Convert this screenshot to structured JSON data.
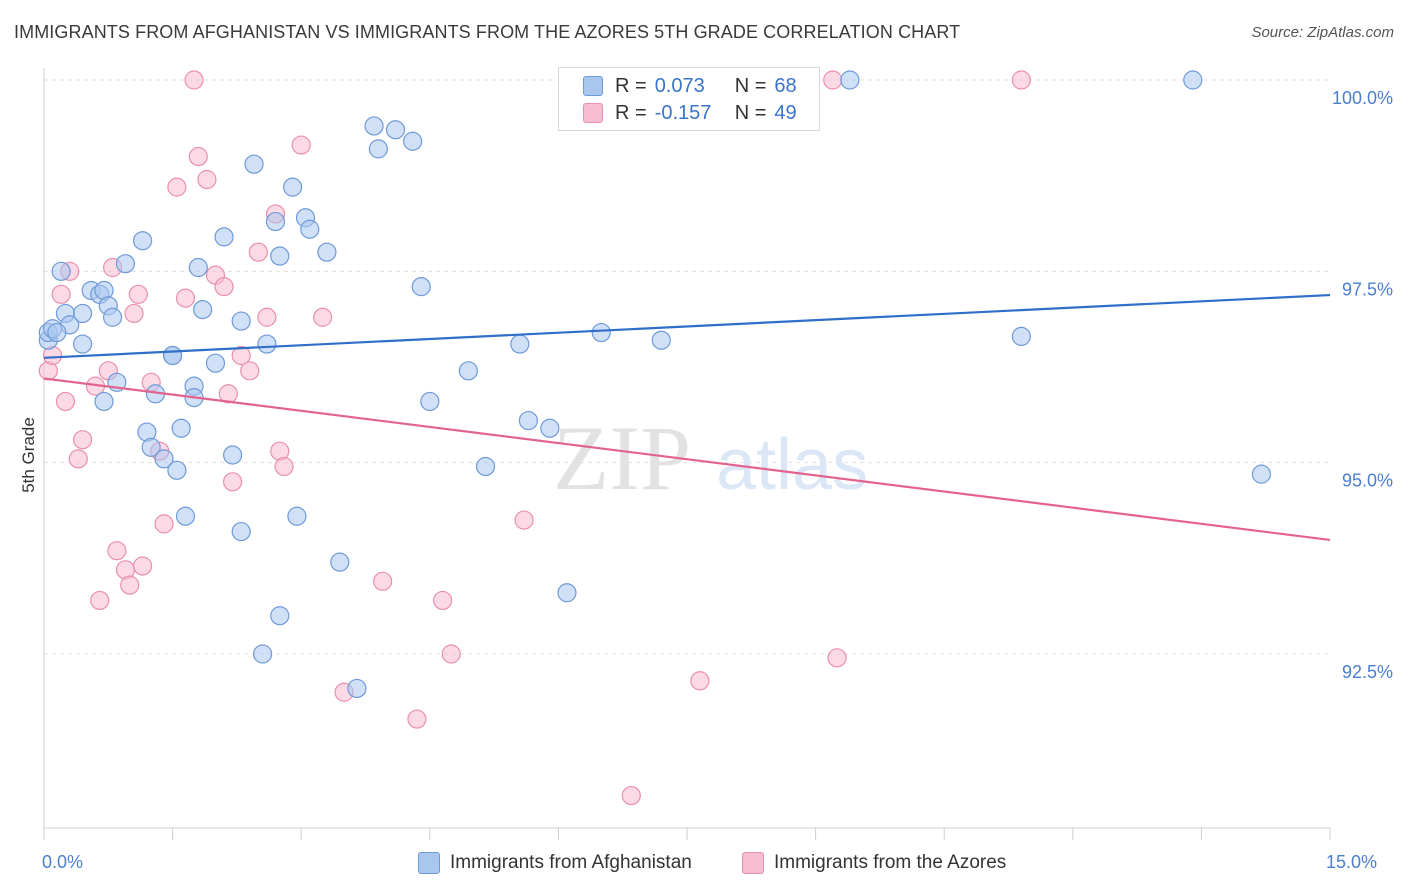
{
  "header": {
    "title": "IMMIGRANTS FROM AFGHANISTAN VS IMMIGRANTS FROM THE AZORES 5TH GRADE CORRELATION CHART",
    "source": "Source: ZipAtlas.com"
  },
  "watermark": {
    "zip": "ZIP",
    "atlas": "atlas"
  },
  "legend_top": {
    "rows": [
      {
        "r_label": "R =",
        "r_value": "0.073",
        "n_label": "N =",
        "n_value": "68"
      },
      {
        "r_label": "R =",
        "r_value": "-0.157",
        "n_label": "N =",
        "n_value": "49"
      }
    ]
  },
  "colors": {
    "series_blue_fill": "#a9c6ef",
    "series_blue_stroke": "#6f9ad8",
    "series_blue_line": "#2f6fca",
    "series_pink_fill": "#f7bcd0",
    "series_pink_stroke": "#ea8fae",
    "series_pink_line": "#e3638f",
    "grid": "#e1e1e1",
    "tick_text": "#4a7fd0"
  },
  "chart_data": {
    "type": "scatter",
    "title": "IMMIGRANTS FROM AFGHANISTAN VS IMMIGRANTS FROM THE AZORES 5TH GRADE CORRELATION CHART",
    "xlabel": "",
    "ylabel": "5th Grade",
    "xlim": [
      0,
      15
    ],
    "ylim": [
      90.2,
      100.8
    ],
    "x_ticks": [
      "0.0%",
      "15.0%"
    ],
    "y_ticks": [
      {
        "value": 92.5,
        "label": "92.5%"
      },
      {
        "value": 95.0,
        "label": "95.0%"
      },
      {
        "value": 97.5,
        "label": "97.5%"
      },
      {
        "value": 100.0,
        "label": "100.0%"
      }
    ],
    "grid": true,
    "legend_position": "bottom",
    "series": [
      {
        "name": "Immigrants from Afghanistan",
        "color": "#a9c6ef",
        "r": 0.073,
        "n": 68,
        "trend": [
          [
            0,
            96.37
          ],
          [
            15,
            97.19
          ]
        ],
        "points": [
          [
            0.05,
            96.6
          ],
          [
            0.05,
            96.7
          ],
          [
            0.1,
            96.75
          ],
          [
            0.2,
            97.5
          ],
          [
            0.25,
            96.95
          ],
          [
            0.3,
            96.8
          ],
          [
            0.45,
            96.95
          ],
          [
            0.45,
            96.55
          ],
          [
            0.55,
            97.25
          ],
          [
            0.65,
            97.2
          ],
          [
            0.7,
            97.25
          ],
          [
            0.75,
            97.05
          ],
          [
            0.8,
            96.9
          ],
          [
            0.85,
            96.05
          ],
          [
            0.7,
            95.8
          ],
          [
            0.95,
            97.6
          ],
          [
            1.15,
            97.9
          ],
          [
            1.2,
            95.4
          ],
          [
            1.25,
            95.2
          ],
          [
            1.3,
            95.9
          ],
          [
            1.4,
            95.05
          ],
          [
            1.5,
            96.4
          ],
          [
            1.55,
            94.9
          ],
          [
            1.6,
            95.45
          ],
          [
            1.65,
            94.3
          ],
          [
            1.75,
            96.0
          ],
          [
            1.8,
            97.55
          ],
          [
            1.85,
            97.0
          ],
          [
            2.0,
            96.3
          ],
          [
            2.1,
            97.95
          ],
          [
            2.2,
            95.1
          ],
          [
            2.3,
            94.1
          ],
          [
            2.3,
            96.85
          ],
          [
            2.45,
            98.9
          ],
          [
            2.55,
            92.5
          ],
          [
            2.6,
            96.55
          ],
          [
            2.7,
            98.15
          ],
          [
            2.75,
            93.0
          ],
          [
            2.75,
            97.7
          ],
          [
            2.9,
            98.6
          ],
          [
            2.95,
            94.3
          ],
          [
            3.05,
            98.2
          ],
          [
            3.1,
            98.05
          ],
          [
            3.3,
            97.75
          ],
          [
            3.45,
            93.7
          ],
          [
            3.65,
            92.05
          ],
          [
            3.85,
            99.4
          ],
          [
            3.9,
            99.1
          ],
          [
            4.1,
            99.35
          ],
          [
            4.3,
            99.2
          ],
          [
            4.4,
            97.3
          ],
          [
            4.5,
            95.8
          ],
          [
            4.95,
            96.2
          ],
          [
            5.15,
            94.95
          ],
          [
            5.55,
            96.55
          ],
          [
            5.65,
            95.55
          ],
          [
            5.9,
            95.45
          ],
          [
            6.1,
            93.3
          ],
          [
            6.5,
            96.7
          ],
          [
            7.2,
            96.6
          ],
          [
            8.0,
            100.0
          ],
          [
            9.4,
            100.0
          ],
          [
            11.4,
            96.65
          ],
          [
            13.4,
            100.0
          ],
          [
            14.2,
            94.85
          ],
          [
            0.15,
            96.7
          ],
          [
            1.75,
            95.85
          ],
          [
            1.5,
            96.4
          ]
        ]
      },
      {
        "name": "Immigrants from the Azores",
        "color": "#f7bcd0",
        "r": -0.157,
        "n": 49,
        "trend": [
          [
            0,
            96.1
          ],
          [
            15,
            93.99
          ]
        ],
        "points": [
          [
            0.05,
            96.2
          ],
          [
            0.1,
            96.4
          ],
          [
            0.2,
            97.2
          ],
          [
            0.25,
            95.8
          ],
          [
            0.3,
            97.5
          ],
          [
            0.4,
            95.05
          ],
          [
            0.45,
            95.3
          ],
          [
            0.6,
            96.0
          ],
          [
            0.65,
            93.2
          ],
          [
            0.75,
            96.2
          ],
          [
            0.8,
            97.55
          ],
          [
            0.85,
            93.85
          ],
          [
            0.95,
            93.6
          ],
          [
            1.0,
            93.4
          ],
          [
            1.05,
            96.95
          ],
          [
            1.1,
            97.2
          ],
          [
            1.15,
            93.65
          ],
          [
            1.25,
            96.05
          ],
          [
            1.35,
            95.15
          ],
          [
            1.4,
            94.2
          ],
          [
            1.55,
            98.6
          ],
          [
            1.65,
            97.15
          ],
          [
            1.75,
            100.0
          ],
          [
            1.8,
            99.0
          ],
          [
            1.9,
            98.7
          ],
          [
            2.0,
            97.45
          ],
          [
            2.1,
            97.3
          ],
          [
            2.15,
            95.9
          ],
          [
            2.2,
            94.75
          ],
          [
            2.3,
            96.4
          ],
          [
            2.4,
            96.2
          ],
          [
            2.5,
            97.75
          ],
          [
            2.6,
            96.9
          ],
          [
            2.7,
            98.25
          ],
          [
            2.75,
            95.15
          ],
          [
            2.8,
            94.95
          ],
          [
            3.0,
            99.15
          ],
          [
            3.25,
            96.9
          ],
          [
            3.5,
            92.0
          ],
          [
            3.95,
            93.45
          ],
          [
            4.35,
            91.65
          ],
          [
            4.65,
            93.2
          ],
          [
            4.75,
            92.5
          ],
          [
            5.6,
            94.25
          ],
          [
            6.85,
            90.65
          ],
          [
            7.65,
            92.15
          ],
          [
            9.2,
            100.0
          ],
          [
            9.25,
            92.45
          ],
          [
            11.4,
            100.0
          ]
        ]
      }
    ]
  }
}
